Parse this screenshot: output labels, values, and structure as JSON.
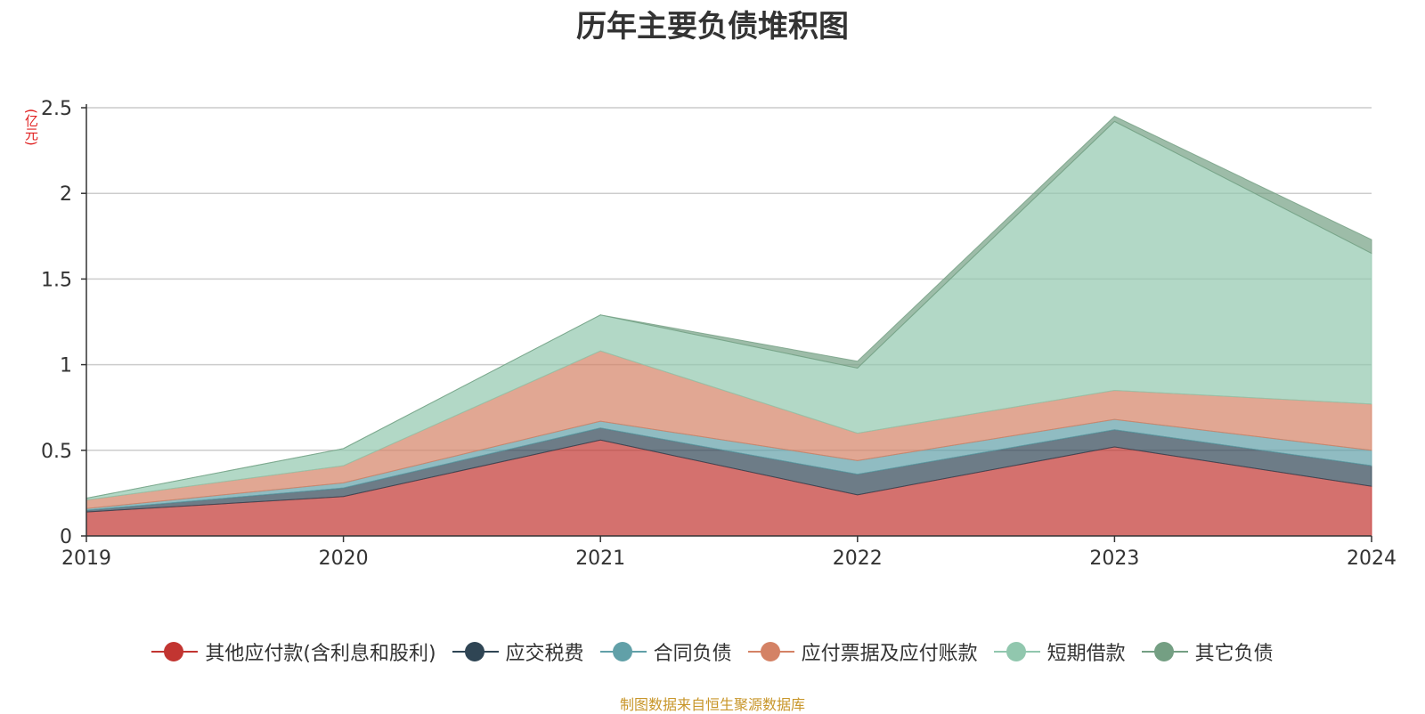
{
  "title": "历年主要负债堆积图",
  "source": "制图数据来自恒生聚源数据库",
  "chart_data": {
    "type": "area",
    "stacked": true,
    "title": "历年主要负债堆积图",
    "ylabel": "(亿元)",
    "xlabel": "",
    "categories": [
      "2019",
      "2020",
      "2021",
      "2022",
      "2023",
      "2024"
    ],
    "ylim": [
      0,
      2.5
    ],
    "yticks": [
      "0",
      "0.5",
      "1",
      "1.5",
      "2",
      "2.5"
    ],
    "grid": true,
    "legend_position": "bottom",
    "series": [
      {
        "name": "其他应付款(含利息和股利)",
        "color": "#c23531",
        "values": [
          0.14,
          0.23,
          0.56,
          0.24,
          0.52,
          0.29
        ]
      },
      {
        "name": "应交税费",
        "color": "#2f4554",
        "values": [
          0.01,
          0.05,
          0.07,
          0.12,
          0.1,
          0.12
        ]
      },
      {
        "name": "合同负债",
        "color": "#61a0a8",
        "values": [
          0.01,
          0.03,
          0.04,
          0.08,
          0.06,
          0.09
        ]
      },
      {
        "name": "应付票据及应付账款",
        "color": "#d48265",
        "values": [
          0.05,
          0.1,
          0.41,
          0.16,
          0.17,
          0.27
        ]
      },
      {
        "name": "短期借款",
        "color": "#91c7ae",
        "values": [
          0.01,
          0.1,
          0.21,
          0.38,
          1.57,
          0.88
        ]
      },
      {
        "name": "其它负债",
        "color": "#749f83",
        "values": [
          0.0,
          0.0,
          0.0,
          0.04,
          0.03,
          0.08
        ]
      }
    ]
  }
}
